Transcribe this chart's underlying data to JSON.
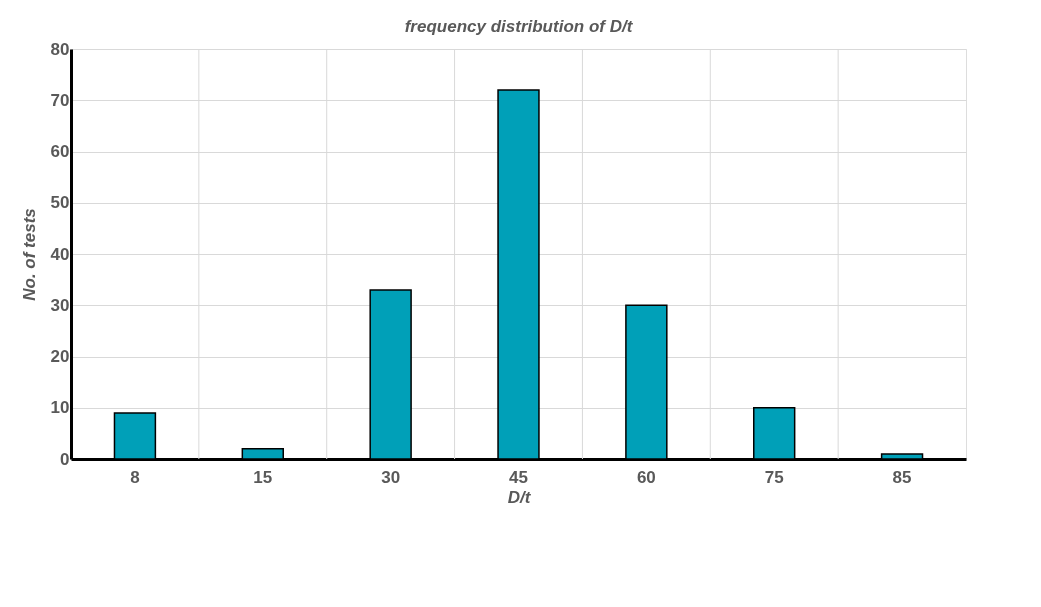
{
  "chart_data": {
    "type": "bar",
    "title": "frequency distribution of D/t",
    "xlabel": "D/t",
    "ylabel": "No. of tests",
    "categories": [
      "8",
      "15",
      "30",
      "45",
      "60",
      "75",
      "85"
    ],
    "values": [
      9,
      2,
      33,
      72,
      30,
      10,
      1
    ],
    "color": "#00a0b8",
    "ylim": [
      0,
      80
    ],
    "yticks": [
      0,
      10,
      20,
      30,
      40,
      50,
      60,
      70,
      80
    ],
    "grid": true
  }
}
